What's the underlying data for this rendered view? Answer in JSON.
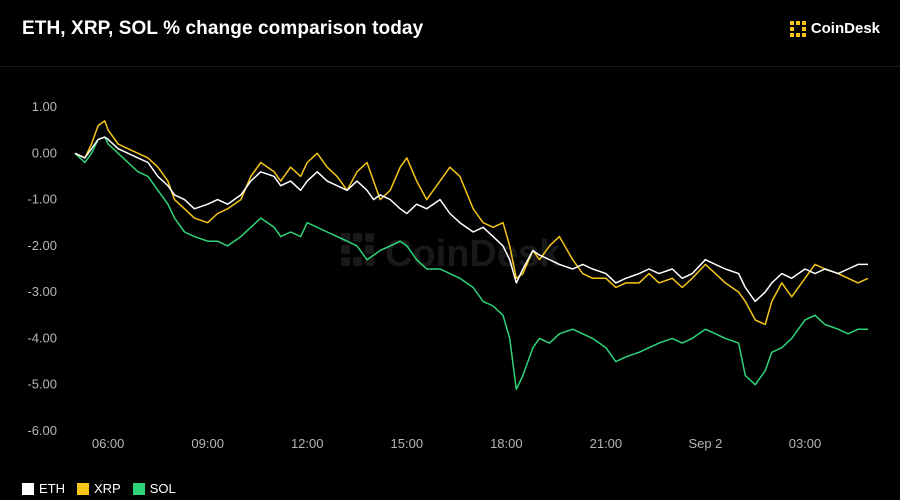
{
  "title": "ETH, XRP, SOL % change comparison today",
  "brand": {
    "name": "CoinDesk",
    "watermark": "CoinDesk",
    "logo_icon": "coindesk-logo-icon"
  },
  "colors": {
    "ETH": "#ffffff",
    "XRP": "#f5c518",
    "SOL": "#2ed47a",
    "background": "#000000",
    "axis_text": "#b5b5b5"
  },
  "chart_data": {
    "type": "line",
    "title": "ETH, XRP, SOL % change comparison today",
    "xlabel": "",
    "ylabel": "",
    "ylim": [
      -6,
      1
    ],
    "yticks": [
      "1.00",
      "0.00",
      "-1.00",
      "-2.00",
      "-3.00",
      "-4.00",
      "-5.00",
      "-6.00"
    ],
    "xlim": [
      4.7,
      29.2
    ],
    "xticks": [
      {
        "x": 6,
        "label": "06:00"
      },
      {
        "x": 9,
        "label": "09:00"
      },
      {
        "x": 12,
        "label": "12:00"
      },
      {
        "x": 15,
        "label": "15:00"
      },
      {
        "x": 18,
        "label": "18:00"
      },
      {
        "x": 21,
        "label": "21:00"
      },
      {
        "x": 24,
        "label": "Sep 2"
      },
      {
        "x": 27,
        "label": "03:00"
      }
    ],
    "legend": "bottom-left",
    "grid": false,
    "x": [
      5.0,
      5.3,
      5.5,
      5.7,
      5.9,
      6.0,
      6.3,
      6.6,
      6.9,
      7.2,
      7.5,
      7.8,
      8.0,
      8.3,
      8.6,
      9.0,
      9.3,
      9.6,
      10.0,
      10.3,
      10.6,
      11.0,
      11.2,
      11.5,
      11.8,
      12.0,
      12.3,
      12.6,
      12.9,
      13.2,
      13.5,
      13.8,
      14.0,
      14.2,
      14.5,
      14.8,
      15.0,
      15.3,
      15.6,
      16.0,
      16.3,
      16.6,
      17.0,
      17.3,
      17.6,
      17.9,
      18.1,
      18.3,
      18.5,
      18.8,
      19.0,
      19.3,
      19.6,
      20.0,
      20.3,
      20.6,
      21.0,
      21.3,
      21.6,
      22.0,
      22.3,
      22.6,
      23.0,
      23.3,
      23.6,
      24.0,
      24.3,
      24.6,
      25.0,
      25.2,
      25.5,
      25.8,
      26.0,
      26.3,
      26.6,
      27.0,
      27.3,
      27.6,
      28.0,
      28.3,
      28.6,
      28.9
    ],
    "series": [
      {
        "name": "ETH",
        "color": "#ffffff",
        "values": [
          0.0,
          -0.1,
          0.1,
          0.3,
          0.35,
          0.3,
          0.1,
          0.0,
          -0.1,
          -0.2,
          -0.5,
          -0.7,
          -0.9,
          -1.0,
          -1.2,
          -1.1,
          -1.0,
          -1.1,
          -0.9,
          -0.6,
          -0.4,
          -0.5,
          -0.7,
          -0.6,
          -0.8,
          -0.6,
          -0.4,
          -0.6,
          -0.7,
          -0.8,
          -0.6,
          -0.8,
          -1.0,
          -0.9,
          -1.0,
          -1.2,
          -1.3,
          -1.1,
          -1.2,
          -1.0,
          -1.3,
          -1.5,
          -1.7,
          -1.6,
          -1.8,
          -2.0,
          -2.3,
          -2.8,
          -2.5,
          -2.1,
          -2.2,
          -2.3,
          -2.4,
          -2.5,
          -2.4,
          -2.5,
          -2.6,
          -2.8,
          -2.7,
          -2.6,
          -2.5,
          -2.6,
          -2.5,
          -2.7,
          -2.6,
          -2.3,
          -2.4,
          -2.5,
          -2.6,
          -2.9,
          -3.2,
          -3.0,
          -2.8,
          -2.6,
          -2.7,
          -2.5,
          -2.6,
          -2.5,
          -2.6,
          -2.5,
          -2.4,
          -2.4
        ]
      },
      {
        "name": "XRP",
        "color": "#f5c518",
        "values": [
          0.0,
          -0.1,
          0.2,
          0.6,
          0.7,
          0.5,
          0.2,
          0.1,
          0.0,
          -0.1,
          -0.3,
          -0.6,
          -1.0,
          -1.2,
          -1.4,
          -1.5,
          -1.3,
          -1.2,
          -1.0,
          -0.5,
          -0.2,
          -0.4,
          -0.6,
          -0.3,
          -0.5,
          -0.2,
          0.0,
          -0.3,
          -0.5,
          -0.8,
          -0.4,
          -0.2,
          -0.6,
          -1.0,
          -0.8,
          -0.3,
          -0.1,
          -0.6,
          -1.0,
          -0.6,
          -0.3,
          -0.5,
          -1.2,
          -1.5,
          -1.6,
          -1.5,
          -2.0,
          -2.7,
          -2.6,
          -2.1,
          -2.3,
          -2.0,
          -1.8,
          -2.3,
          -2.6,
          -2.7,
          -2.7,
          -2.9,
          -2.8,
          -2.8,
          -2.6,
          -2.8,
          -2.7,
          -2.9,
          -2.7,
          -2.4,
          -2.6,
          -2.8,
          -3.0,
          -3.2,
          -3.6,
          -3.7,
          -3.2,
          -2.8,
          -3.1,
          -2.7,
          -2.4,
          -2.5,
          -2.6,
          -2.7,
          -2.8,
          -2.7
        ]
      },
      {
        "name": "SOL",
        "color": "#2ed47a",
        "values": [
          0.0,
          -0.2,
          0.0,
          0.3,
          0.35,
          0.2,
          0.0,
          -0.2,
          -0.4,
          -0.5,
          -0.8,
          -1.1,
          -1.4,
          -1.7,
          -1.8,
          -1.9,
          -1.9,
          -2.0,
          -1.8,
          -1.6,
          -1.4,
          -1.6,
          -1.8,
          -1.7,
          -1.8,
          -1.5,
          -1.6,
          -1.7,
          -1.8,
          -1.9,
          -2.0,
          -2.3,
          -2.2,
          -2.1,
          -2.0,
          -1.9,
          -2.0,
          -2.3,
          -2.5,
          -2.5,
          -2.6,
          -2.7,
          -2.9,
          -3.2,
          -3.3,
          -3.5,
          -4.0,
          -5.1,
          -4.8,
          -4.2,
          -4.0,
          -4.1,
          -3.9,
          -3.8,
          -3.9,
          -4.0,
          -4.2,
          -4.5,
          -4.4,
          -4.3,
          -4.2,
          -4.1,
          -4.0,
          -4.1,
          -4.0,
          -3.8,
          -3.9,
          -4.0,
          -4.1,
          -4.8,
          -5.0,
          -4.7,
          -4.3,
          -4.2,
          -4.0,
          -3.6,
          -3.5,
          -3.7,
          -3.8,
          -3.9,
          -3.8,
          -3.8
        ]
      }
    ]
  }
}
